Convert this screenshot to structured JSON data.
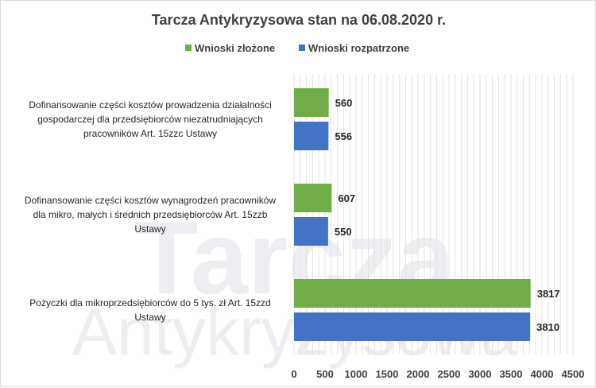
{
  "chart_data": {
    "type": "bar",
    "orientation": "horizontal",
    "title": "Tarcza Antykryzysowa  stan na 06.08.2020 r.",
    "categories": [
      "Dofinansowanie części kosztów prowadzenia działalności gospodarczej dla przedsiębiorców niezatrudniających pracowników Art. 15zzc Ustawy",
      "Dofinansowanie części kosztów wynagrodzeń pracowników dla mikro, małych i średnich przedsiębiorców Art. 15zzb Ustawy",
      "Pożyczki dla mikroprzedsiębiorców do 5 tys. zł Art. 15zzd Ustawy"
    ],
    "category_lines": [
      [
        "Dofinansowanie części kosztów prowadzenia działalności",
        "gospodarczej dla przedsiębiorców niezatrudniających",
        "pracowników Art. 15zzc Ustawy"
      ],
      [
        "Dofinansowanie części kosztów wynagrodzeń pracowników",
        "dla mikro, małych i średnich przedsiębiorców Art. 15zzb",
        "Ustawy"
      ],
      [
        "Pożyczki dla mikroprzedsiębiorców do 5 tys. zł Art. 15zzd",
        "Ustawy"
      ]
    ],
    "series": [
      {
        "name": "Wnioski złożone",
        "values": [
          560,
          607,
          3817
        ],
        "color": "#70ad47"
      },
      {
        "name": "Wnioski rozpatrzone",
        "values": [
          556,
          550,
          3810
        ],
        "color": "#4472c4"
      }
    ],
    "xlim": [
      0,
      4500
    ],
    "xticks": [
      0,
      500,
      1000,
      1500,
      2000,
      2500,
      3000,
      3500,
      4000,
      4500
    ],
    "grid": true,
    "legend_position": "top",
    "watermark": [
      "Tarcza",
      "Antykryzysowa"
    ]
  }
}
